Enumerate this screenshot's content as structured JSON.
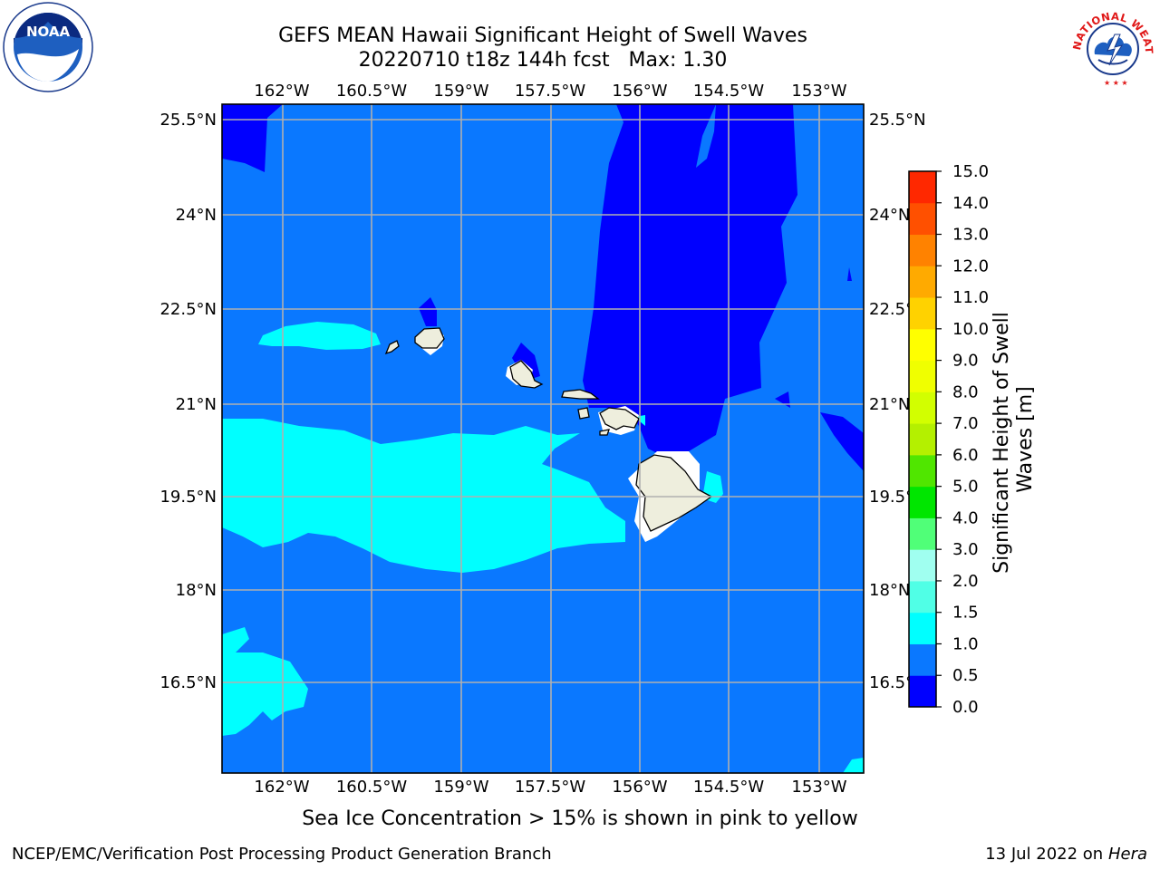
{
  "title": {
    "line1": "GEFS MEAN Hawaii Significant Height of Swell Waves",
    "line2": "20220710 t18z 144h fcst   Max: 1.30"
  },
  "map": {
    "lon_labels": [
      "162°W",
      "160.5°W",
      "159°W",
      "157.5°W",
      "156°W",
      "154.5°W",
      "153°W"
    ],
    "lat_labels": [
      "25.5°N",
      "24°N",
      "22.5°N",
      "21°N",
      "19.5°N",
      "18°N",
      "16.5°N"
    ],
    "lon_range": [
      -163.0,
      -152.25
    ],
    "lat_range": [
      15.0,
      25.75
    ]
  },
  "colorbar": {
    "label": "Significant Height of Swell Waves [m]",
    "ticks": [
      "0.0",
      "0.5",
      "1.0",
      "1.5",
      "2.0",
      "3.0",
      "4.0",
      "5.0",
      "6.0",
      "7.0",
      "8.0",
      "9.0",
      "10.0",
      "11.0",
      "12.0",
      "13.0",
      "14.0",
      "15.0"
    ],
    "colors": [
      "#0000ff",
      "#0a78ff",
      "#00ffff",
      "#50ffe6",
      "#a0fff0",
      "#50ff78",
      "#00e600",
      "#50e600",
      "#b4f000",
      "#d2ff00",
      "#f0ff00",
      "#ffff00",
      "#ffd200",
      "#ffaa00",
      "#ff8200",
      "#ff5000",
      "#ff2800",
      "#ff0000"
    ]
  },
  "legend_levels_m": [
    0.0,
    0.5,
    1.0,
    1.5,
    2.0,
    3.0,
    4.0,
    5.0,
    6.0,
    7.0,
    8.0,
    9.0,
    10.0,
    11.0,
    12.0,
    13.0,
    14.0,
    15.0
  ],
  "note": "Sea Ice Concentration > 15% is shown in pink to yellow",
  "footer": {
    "left": "NCEP/EMC/Verification Post Processing Product Generation Branch",
    "right_date": "13 Jul 2022 on ",
    "right_host": "Hera"
  },
  "logos": {
    "noaa_text": "NOAA",
    "nws_text": "NATIONAL WEATHER SERVICE"
  }
}
